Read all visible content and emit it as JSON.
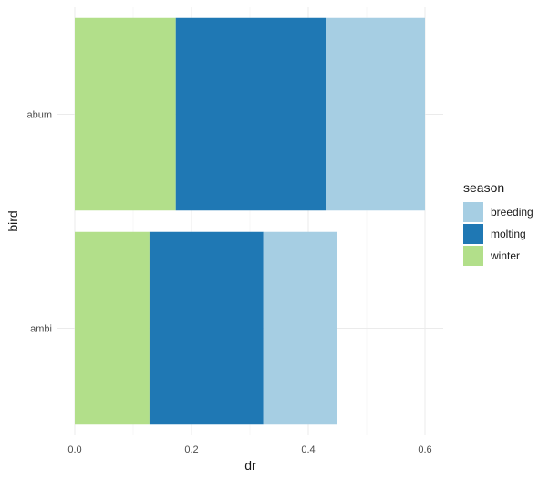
{
  "chart_data": {
    "type": "bar",
    "orientation": "horizontal",
    "stacked": true,
    "categories": [
      "abum",
      "ambi"
    ],
    "series": [
      {
        "name": "winter",
        "color": "#b2df8a",
        "values": [
          0.173,
          0.128
        ]
      },
      {
        "name": "molting",
        "color": "#1f78b4",
        "values": [
          0.257,
          0.195
        ]
      },
      {
        "name": "breeding",
        "color": "#a6cee3",
        "values": [
          0.17,
          0.127
        ]
      }
    ],
    "xlabel": "dr",
    "ylabel": "bird",
    "xlim": [
      0,
      0.63
    ],
    "xticks": [
      0.0,
      0.2,
      0.4,
      0.6
    ],
    "xtick_labels": [
      "0.0",
      "0.2",
      "0.4",
      "0.6"
    ],
    "grid": true,
    "legend": {
      "title": "season",
      "position": "right",
      "entries": [
        "breeding",
        "molting",
        "winter"
      ]
    }
  }
}
